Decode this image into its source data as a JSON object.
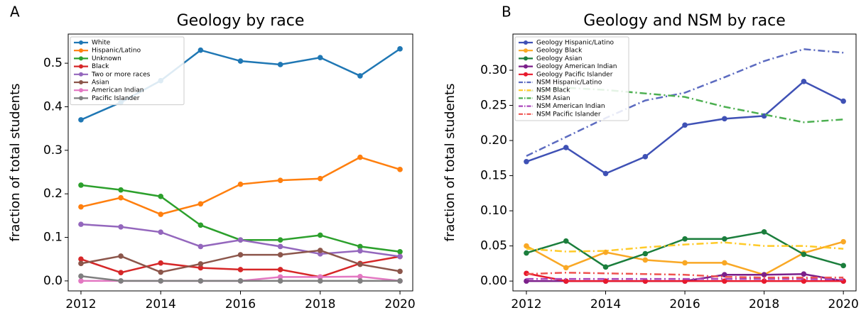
{
  "chart_data": [
    {
      "type": "line",
      "panel_label": "A",
      "title": "Geology by race",
      "y_label": "fraction of total students",
      "x": [
        2012,
        2013,
        2014,
        2015,
        2016,
        2017,
        2018,
        2019,
        2020
      ],
      "xlim": [
        2011.68,
        2020.32
      ],
      "xticks": [
        2012,
        2014,
        2016,
        2018,
        2020
      ],
      "ylim": [
        -0.023,
        0.567
      ],
      "yticks": [
        {
          "value": 0,
          "label": "0.0"
        },
        {
          "value": 0.1,
          "label": "0.1"
        },
        {
          "value": 0.2,
          "label": "0.2"
        },
        {
          "value": 0.3,
          "label": "0.3"
        },
        {
          "value": 0.4,
          "label": "0.4"
        },
        {
          "value": 0.5,
          "label": "0.5"
        }
      ],
      "legend": "upper left",
      "series": [
        {
          "name": "White",
          "color": "#1f77b4",
          "linestyle": "solid",
          "marker": "o",
          "values": [
            0.37,
            0.41,
            0.46,
            0.53,
            0.505,
            0.497,
            0.513,
            0.471,
            0.533
          ]
        },
        {
          "name": "Hispanic/Latino",
          "color": "#ff7f0e",
          "linestyle": "solid",
          "marker": "o",
          "values": [
            0.17,
            0.191,
            0.153,
            0.177,
            0.222,
            0.231,
            0.235,
            0.284,
            0.256
          ]
        },
        {
          "name": "Unknown",
          "color": "#2ca02c",
          "linestyle": "solid",
          "marker": "o",
          "values": [
            0.22,
            0.209,
            0.194,
            0.128,
            0.094,
            0.094,
            0.105,
            0.079,
            0.067
          ]
        },
        {
          "name": "Black",
          "color": "#d62728",
          "linestyle": "solid",
          "marker": "o",
          "values": [
            0.05,
            0.019,
            0.041,
            0.03,
            0.026,
            0.026,
            0.009,
            0.04,
            0.056
          ]
        },
        {
          "name": "Two or more races",
          "color": "#9467bd",
          "linestyle": "solid",
          "marker": "o",
          "values": [
            0.13,
            0.124,
            0.112,
            0.079,
            0.094,
            0.079,
            0.062,
            0.069,
            0.056
          ]
        },
        {
          "name": "Asian",
          "color": "#8c564b",
          "linestyle": "solid",
          "marker": "o",
          "values": [
            0.04,
            0.057,
            0.02,
            0.039,
            0.06,
            0.06,
            0.07,
            0.038,
            0.022
          ]
        },
        {
          "name": "American Indian",
          "color": "#e377c2",
          "linestyle": "solid",
          "marker": "o",
          "values": [
            0,
            0,
            0,
            0,
            0,
            0.009,
            0.009,
            0.01,
            0
          ]
        },
        {
          "name": "Pacific Islander",
          "color": "#7f7f7f",
          "linestyle": "solid",
          "marker": "o",
          "values": [
            0.011,
            0,
            0,
            0,
            0,
            0,
            0,
            0,
            0
          ]
        }
      ]
    },
    {
      "type": "line",
      "panel_label": "B",
      "title": "Geology and NSM by race",
      "y_label": "fraction of total students",
      "x": [
        2012,
        2013,
        2014,
        2015,
        2016,
        2017,
        2018,
        2019,
        2020
      ],
      "xlim": [
        2011.66,
        2020.32
      ],
      "xticks": [
        2012,
        2014,
        2016,
        2018,
        2020
      ],
      "ylim": [
        -0.014,
        0.3515
      ],
      "yticks": [
        {
          "value": 0,
          "label": "0.00"
        },
        {
          "value": 0.05,
          "label": "0.05"
        },
        {
          "value": 0.1,
          "label": "0.10"
        },
        {
          "value": 0.15,
          "label": "0.15"
        },
        {
          "value": 0.2,
          "label": "0.20"
        },
        {
          "value": 0.25,
          "label": "0.25"
        },
        {
          "value": 0.3,
          "label": "0.30"
        }
      ],
      "legend": "upper left",
      "series": [
        {
          "name": "Geology Hispanic/Latino",
          "color": "#3f51b5",
          "linestyle": "solid",
          "marker": "o",
          "values": [
            0.17,
            0.19,
            0.153,
            0.177,
            0.222,
            0.231,
            0.235,
            0.284,
            0.256
          ]
        },
        {
          "name": "Geology Black",
          "color": "#f9a825",
          "linestyle": "solid",
          "marker": "o",
          "values": [
            0.05,
            0.019,
            0.041,
            0.03,
            0.026,
            0.026,
            0.009,
            0.04,
            0.056
          ]
        },
        {
          "name": "Geology Asian",
          "color": "#1b7e3c",
          "linestyle": "solid",
          "marker": "o",
          "values": [
            0.04,
            0.057,
            0.02,
            0.039,
            0.06,
            0.06,
            0.07,
            0.038,
            0.022
          ]
        },
        {
          "name": "Geology American Indian",
          "color": "#7b1f8a",
          "linestyle": "solid",
          "marker": "o",
          "values": [
            0,
            0,
            0,
            0,
            0,
            0.009,
            0.009,
            0.01,
            0
          ]
        },
        {
          "name": "Geology Pacific Islander",
          "color": "#e8192c",
          "linestyle": "solid",
          "marker": "o",
          "values": [
            0.011,
            0,
            0,
            0,
            0,
            0,
            0,
            0,
            0
          ]
        },
        {
          "name": "NSM Hispanic/Latino",
          "color": "#5c6bc0",
          "linestyle": "dashdot",
          "marker": "none",
          "values": [
            0.178,
            0.205,
            0.232,
            0.257,
            0.268,
            0.29,
            0.313,
            0.33,
            0.325
          ]
        },
        {
          "name": "NSM Black",
          "color": "#ffca28",
          "linestyle": "dashdot",
          "marker": "none",
          "values": [
            0.046,
            0.042,
            0.043,
            0.048,
            0.052,
            0.055,
            0.05,
            0.05,
            0.046
          ]
        },
        {
          "name": "NSM Asian",
          "color": "#4caf50",
          "linestyle": "dashdot",
          "marker": "none",
          "values": [
            0.27,
            0.275,
            0.272,
            0.267,
            0.262,
            0.248,
            0.237,
            0.226,
            0.23
          ]
        },
        {
          "name": "NSM American Indian",
          "color": "#ab47bc",
          "linestyle": "dashdot",
          "marker": "none",
          "values": [
            0.003,
            0.003,
            0.003,
            0.003,
            0.003,
            0.003,
            0.003,
            0.003,
            0.002
          ]
        },
        {
          "name": "NSM Pacific Islander",
          "color": "#ef5350",
          "linestyle": "dashdot",
          "marker": "none",
          "values": [
            0.01,
            0.012,
            0.011,
            0.01,
            0.009,
            0.006,
            0.005,
            0.005,
            0.005
          ]
        }
      ]
    }
  ]
}
